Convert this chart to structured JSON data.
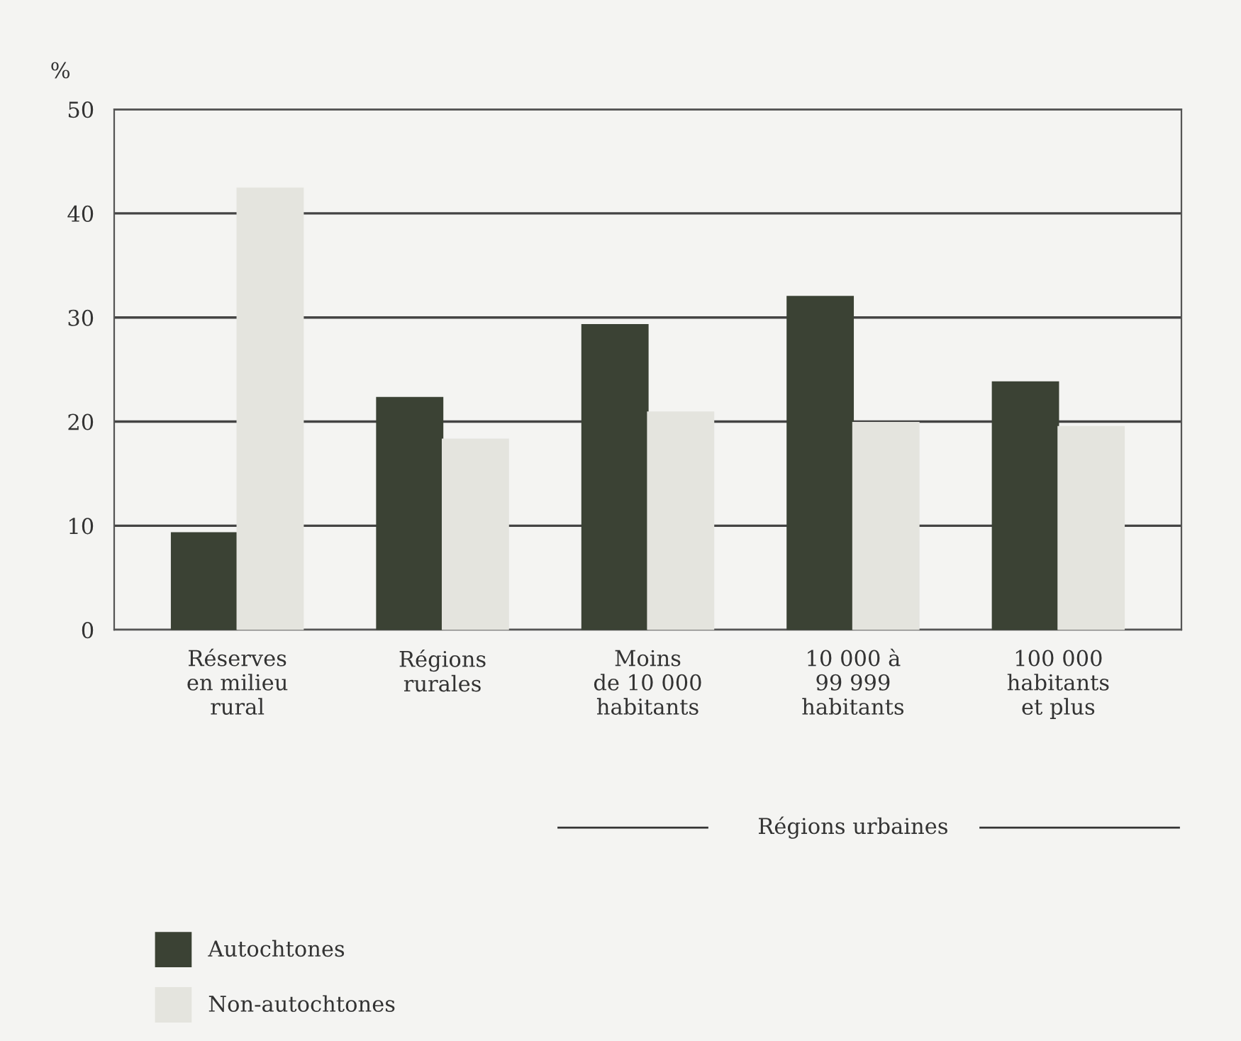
{
  "chart_data": {
    "type": "bar",
    "ylabel": "%",
    "categories": [
      "Réserves\nen milieu\nrural",
      "Régions\nrurales",
      "Moins\nde 10 000\nhabitants",
      "10 000 à\n99 999\nhabitants",
      "100 000\nhabitants\net plus"
    ],
    "series": [
      {
        "name": "Autochtones",
        "color": "#3b4234",
        "values": [
          9.3,
          22.3,
          29.3,
          32.0,
          23.8
        ]
      },
      {
        "name": "Non-autochtones",
        "color": "#e4e4de",
        "values": [
          42.4,
          18.3,
          20.9,
          19.9,
          19.5
        ]
      }
    ],
    "ylim": [
      0,
      50
    ],
    "yticks": [
      0,
      10,
      20,
      30,
      40,
      50
    ],
    "grid": "y",
    "legend": "bottom left",
    "annotations": [
      "Régions urbaines"
    ]
  }
}
